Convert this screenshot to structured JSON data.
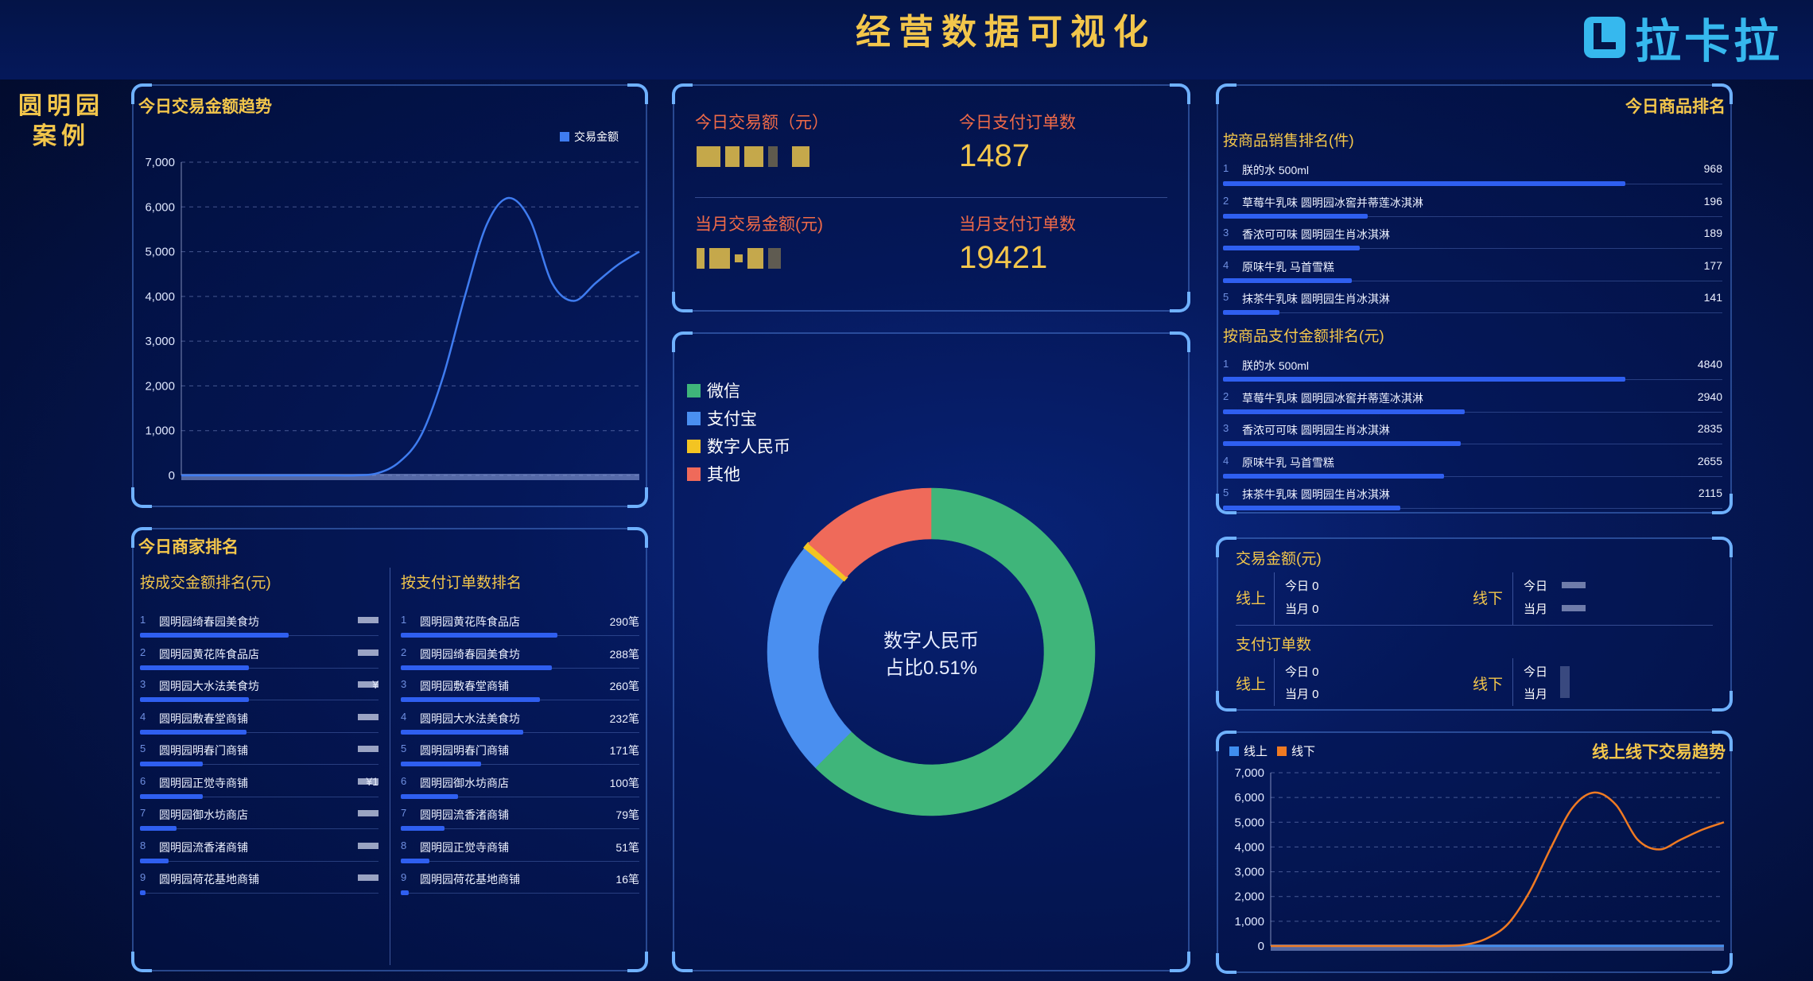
{
  "header": {
    "title": "经营数据可视化",
    "logo_text": "拉卡拉",
    "case_label_line1": "圆明园",
    "case_label_line2": "案例"
  },
  "trend_panel": {
    "title": "今日交易金额趋势",
    "chart_data": {
      "type": "line",
      "series": [
        {
          "name": "交易金额",
          "values": [
            0,
            0,
            0,
            0,
            0,
            0,
            0,
            0,
            0,
            50,
            300,
            900,
            2200,
            4000,
            5600,
            6200,
            5700,
            4300,
            3900,
            4300,
            4700,
            5000
          ]
        }
      ],
      "ylim": [
        0,
        7000
      ],
      "yticks": [
        "7,000",
        "6,000",
        "5,000",
        "4,000",
        "3,000",
        "2,000",
        "1,000",
        "0"
      ],
      "grid": true,
      "legend_position": "top-right",
      "color": "#3f7cf0"
    }
  },
  "kpis": {
    "today_amount_label": "今日交易额（元）",
    "today_orders_label": "今日支付订单数",
    "today_orders_value": "1487",
    "month_amount_label": "当月交易金额(元)",
    "month_orders_label": "当月支付订单数",
    "month_orders_value": "19421"
  },
  "payment_panel": {
    "legend": [
      {
        "label": "微信",
        "color": "#3fb57a"
      },
      {
        "label": "支付宝",
        "color": "#4a8ff0"
      },
      {
        "label": "数字人民币",
        "color": "#f3c422"
      },
      {
        "label": "其他",
        "color": "#ef6a5a"
      }
    ],
    "center_line1": "数字人民币",
    "center_line2": "占比0.51%",
    "chart_data": {
      "type": "pie",
      "categories": [
        "微信",
        "支付宝",
        "数字人民币",
        "其他"
      ],
      "values": [
        62.5,
        23.5,
        0.51,
        13.5
      ]
    }
  },
  "product_panel": {
    "title": "今日商品排名",
    "by_sales_title": "按商品销售排名(件)",
    "by_sales": [
      {
        "rank": "1",
        "name": "朕的水 500ml",
        "value": "968"
      },
      {
        "rank": "2",
        "name": "草莓牛乳味 圆明园冰窖并蒂莲冰淇淋",
        "value": "196"
      },
      {
        "rank": "3",
        "name": "香浓可可味 圆明园生肖冰淇淋",
        "value": "189"
      },
      {
        "rank": "4",
        "name": "原味牛乳 马首雪糕",
        "value": "177"
      },
      {
        "rank": "5",
        "name": "抹茶牛乳味 圆明园生肖冰淇淋",
        "value": "141"
      }
    ],
    "by_amount_title": "按商品支付金额排名(元)",
    "by_amount": [
      {
        "rank": "1",
        "name": "朕的水 500ml",
        "value": "4840"
      },
      {
        "rank": "2",
        "name": "草莓牛乳味 圆明园冰窖并蒂莲冰淇淋",
        "value": "2940"
      },
      {
        "rank": "3",
        "name": "香浓可可味 圆明园生肖冰淇淋",
        "value": "2835"
      },
      {
        "rank": "4",
        "name": "原味牛乳 马首雪糕",
        "value": "2655"
      },
      {
        "rank": "5",
        "name": "抹茶牛乳味 圆明园生肖冰淇淋",
        "value": "2115"
      }
    ],
    "sales_fill": [
      1.0,
      0.36,
      0.34,
      0.32,
      0.14
    ],
    "amount_fill": [
      1.0,
      0.6,
      0.59,
      0.55,
      0.44
    ]
  },
  "merchant_panel": {
    "title": "今日商家排名",
    "by_amount_title": "按成交金额排名(元)",
    "by_amount": [
      {
        "rank": "1",
        "name": "圆明园绮春园美食坊",
        "value": ""
      },
      {
        "rank": "2",
        "name": "圆明园黄花阵食品店",
        "value": ""
      },
      {
        "rank": "3",
        "name": "圆明园大水法美食坊",
        "value": "¥"
      },
      {
        "rank": "4",
        "name": "圆明园敷春堂商铺",
        "value": ""
      },
      {
        "rank": "5",
        "name": "圆明园明春门商铺",
        "value": ""
      },
      {
        "rank": "6",
        "name": "圆明园正觉寺商铺",
        "value": "¥1"
      },
      {
        "rank": "7",
        "name": "圆明园御水坊商店",
        "value": ""
      },
      {
        "rank": "8",
        "name": "圆明园流香渚商铺",
        "value": ""
      },
      {
        "rank": "9",
        "name": "圆明园荷花基地商铺",
        "value": ""
      }
    ],
    "by_orders_title": "按支付订单数排名",
    "by_orders": [
      {
        "rank": "1",
        "name": "圆明园黄花阵食品店",
        "value": "290笔"
      },
      {
        "rank": "2",
        "name": "圆明园绮春园美食坊",
        "value": "288笔"
      },
      {
        "rank": "3",
        "name": "圆明园敷春堂商铺",
        "value": "260笔"
      },
      {
        "rank": "4",
        "name": "圆明园大水法美食坊",
        "value": "232笔"
      },
      {
        "rank": "5",
        "name": "圆明园明春门商铺",
        "value": "171笔"
      },
      {
        "rank": "6",
        "name": "圆明园御水坊商店",
        "value": "100笔"
      },
      {
        "rank": "7",
        "name": "圆明园流香渚商铺",
        "value": "79笔"
      },
      {
        "rank": "8",
        "name": "圆明园正觉寺商铺",
        "value": "51笔"
      },
      {
        "rank": "9",
        "name": "圆明园荷花基地商铺",
        "value": "16笔"
      }
    ],
    "amount_fill": [
      0.78,
      0.57,
      0.57,
      0.56,
      0.33,
      0.33,
      0.19,
      0.15,
      0.03
    ],
    "orders_fill": [
      0.82,
      0.79,
      0.73,
      0.64,
      0.42,
      0.3,
      0.23,
      0.15,
      0.04
    ]
  },
  "online_panel": {
    "amount_title": "交易金额(元)",
    "orders_title": "支付订单数",
    "online_label": "线上",
    "offline_label": "线下",
    "today_label": "今日",
    "month_label": "当月",
    "online_amount_today": "今日 0",
    "online_amount_month": "当月 0",
    "online_orders_today": "今日 0",
    "online_orders_month": "当月 0"
  },
  "online_trend_panel": {
    "title": "线上线下交易趋势",
    "chart_data": {
      "type": "line",
      "series": [
        {
          "name": "线上",
          "values": [
            0,
            0,
            0,
            0,
            0,
            0,
            0,
            0,
            0,
            0,
            0,
            0,
            0,
            0,
            0,
            0,
            0,
            0,
            0,
            0,
            0,
            0
          ],
          "color": "#3f8ef0"
        },
        {
          "name": "线下",
          "values": [
            0,
            0,
            0,
            0,
            0,
            0,
            0,
            0,
            0,
            50,
            300,
            900,
            2200,
            4000,
            5600,
            6200,
            5700,
            4300,
            3900,
            4300,
            4700,
            5000
          ],
          "color": "#f07a22"
        }
      ],
      "ylim": [
        0,
        7000
      ],
      "yticks": [
        "7,000",
        "6,000",
        "5,000",
        "4,000",
        "3,000",
        "2,000",
        "1,000",
        "0"
      ],
      "grid": true,
      "legend_position": "top-left"
    }
  }
}
